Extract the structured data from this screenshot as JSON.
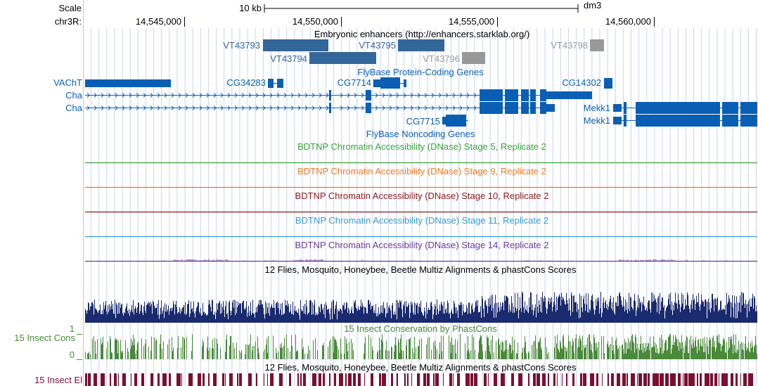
{
  "header": {
    "scale_label": "Scale",
    "scale_value": "10 kb",
    "assembly": "dm3",
    "chrom_label": "chr3R:",
    "ticks": [
      "14,545,000",
      "14,550,000",
      "14,555,000",
      "14,560,000"
    ]
  },
  "enhancers": {
    "title": "Embryonic enhancers (http://enhancers.starklab.org/)",
    "items": [
      {
        "name": "VT43793",
        "color": "#336699",
        "label_row": 0
      },
      {
        "name": "VT43794",
        "color": "#336699",
        "label_row": 1
      },
      {
        "name": "VT43795",
        "color": "#336699",
        "label_row": 0
      },
      {
        "name": "VT43796",
        "color": "#999999",
        "label_row": 1
      },
      {
        "name": "VT43798",
        "color": "#999999",
        "label_row": 0
      }
    ]
  },
  "genes": {
    "title": "FlyBase Protein-Coding Genes",
    "color": "#0a5fb4",
    "items": [
      "VAChT",
      "CG34283",
      "CG7714",
      "CG14302",
      "Cha",
      "Cha",
      "CG7715",
      "Mekk1",
      "Mekk1"
    ]
  },
  "noncoding": {
    "title": "FlyBase Noncoding Genes"
  },
  "dnase": [
    {
      "title": "BDTNP Chromatin Accessibility (DNase) Stage 5, Replicate 2",
      "color": "#3aa33a"
    },
    {
      "title": "BDTNP Chromatin Accessibility (DNase) Stage 9, Replicate 2",
      "color": "#f07a20"
    },
    {
      "title": "BDTNP Chromatin Accessibility (DNase) Stage 10, Replicate 2",
      "color": "#8b1a1a"
    },
    {
      "title": "BDTNP Chromatin Accessibility (DNase) Stage 11, Replicate 2",
      "color": "#3a9ad0"
    },
    {
      "title": "BDTNP Chromatin Accessibility (DNase) Stage 14, Replicate 2",
      "color": "#6a3a9a"
    }
  ],
  "multiz": {
    "title": "12 Flies, Mosquito, Honeybee, Beetle Multiz Alignments & phastCons Scores",
    "color": "#1a2a6e"
  },
  "cons": {
    "title": "15 Insect Conservation by PhastCons",
    "label": "15 Insect Cons",
    "axis_top": "1",
    "axis_bottom": "0",
    "color": "#4a8a3a"
  },
  "elements": {
    "title": "12 Flies, Mosquito, Honeybee, Beetle Multiz Alignments & phastCons Scores",
    "label": "15 Insect El",
    "color": "#7a1030"
  }
}
